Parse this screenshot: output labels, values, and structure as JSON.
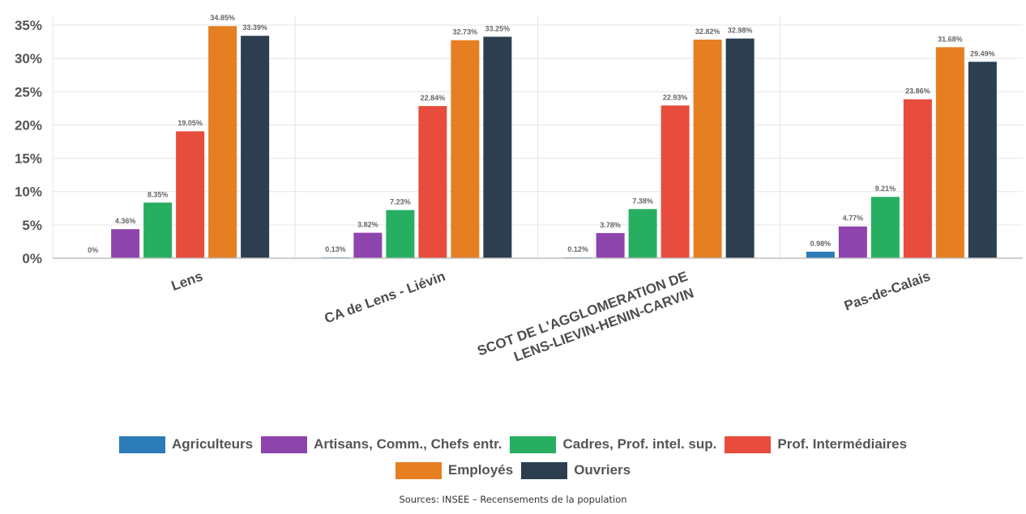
{
  "chart_data": {
    "type": "bar",
    "categories": [
      "Lens",
      "CA de Lens - Liévin",
      "SCOT DE L'AGGLOMERATION DE|LENS-LIEVIN-HENIN-CARVIN",
      "Pas-de-Calais"
    ],
    "series": [
      {
        "name": "Agriculteurs",
        "color": "#2b7cb8",
        "values": [
          0,
          0.13,
          0.12,
          0.98
        ],
        "labels": [
          "0%",
          "0.13%",
          "0.12%",
          "0.98%"
        ]
      },
      {
        "name": "Artisans, Comm., Chefs entr.",
        "color": "#8e44ad",
        "values": [
          4.36,
          3.82,
          3.78,
          4.77
        ],
        "labels": [
          "4.36%",
          "3.82%",
          "3.78%",
          "4.77%"
        ]
      },
      {
        "name": "Cadres, Prof. intel. sup.",
        "color": "#27ae60",
        "values": [
          8.35,
          7.23,
          7.38,
          9.21
        ],
        "labels": [
          "8.35%",
          "7.23%",
          "7.38%",
          "9.21%"
        ]
      },
      {
        "name": "Prof. Intermédiaires",
        "color": "#e74c3c",
        "values": [
          19.05,
          22.84,
          22.93,
          23.86
        ],
        "labels": [
          "19.05%",
          "22.84%",
          "22.93%",
          "23.86%"
        ]
      },
      {
        "name": "Employés",
        "color": "#e67e22",
        "values": [
          34.85,
          32.73,
          32.82,
          31.68
        ],
        "labels": [
          "34.85%",
          "32.73%",
          "32.82%",
          "31.68%"
        ]
      },
      {
        "name": "Ouvriers",
        "color": "#2c3e50",
        "values": [
          33.39,
          33.25,
          32.98,
          29.49
        ],
        "labels": [
          "33.39%",
          "33.25%",
          "32.98%",
          "29.49%"
        ]
      }
    ],
    "ylim": [
      0,
      35
    ],
    "yticks": [
      0,
      5,
      10,
      15,
      20,
      25,
      30,
      35
    ],
    "ytick_labels": [
      "0%",
      "5%",
      "10%",
      "15%",
      "20%",
      "25%",
      "30%",
      "35%"
    ],
    "grid": true,
    "legend_position": "bottom",
    "title": "",
    "xlabel": "",
    "ylabel": ""
  },
  "source_text": "Sources: INSEE – Recensements de la population"
}
